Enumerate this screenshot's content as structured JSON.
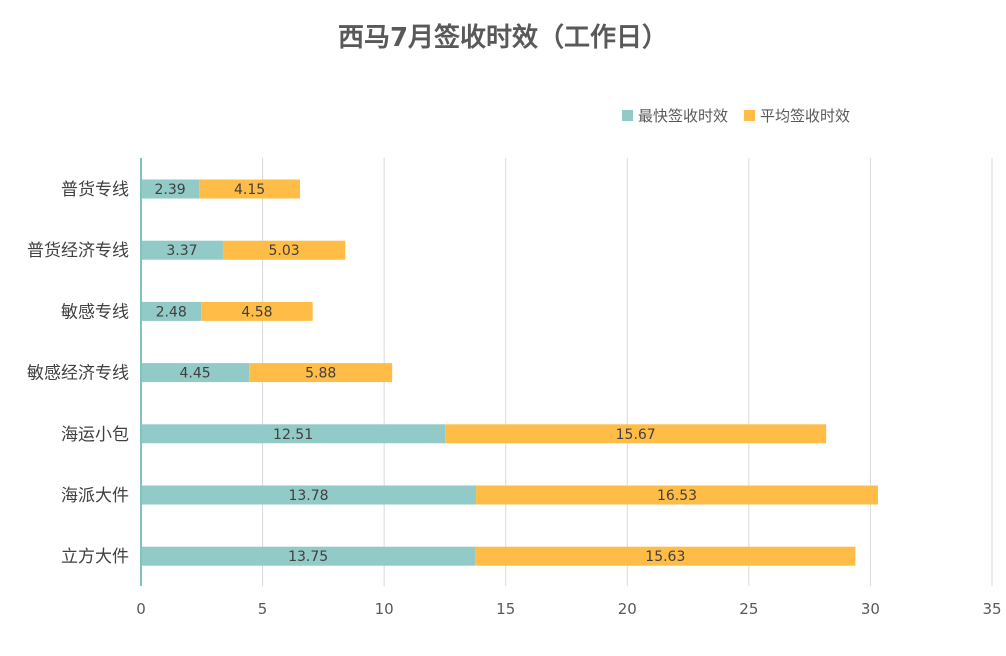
{
  "chart_data": {
    "type": "bar",
    "orientation": "horizontal",
    "stacked": true,
    "title": "西马7月签收时效（工作日）",
    "categories": [
      "普货专线",
      "普货经济专线",
      "敏感专线",
      "敏感经济专线",
      "海运小包",
      "海派大件",
      "立方大件"
    ],
    "series": [
      {
        "name": "最快签收时效",
        "color": "#91CAC6",
        "values": [
          2.39,
          3.37,
          2.48,
          4.45,
          12.51,
          13.78,
          13.75
        ]
      },
      {
        "name": "平均签收时效",
        "color": "#FFBD48",
        "values": [
          4.15,
          5.03,
          4.58,
          5.88,
          15.67,
          16.53,
          15.63
        ]
      }
    ],
    "xlim": [
      0,
      35
    ],
    "ticks": [
      "0",
      "5",
      "10",
      "15",
      "20",
      "25",
      "30",
      "35"
    ],
    "grid": true,
    "legend_position": "top-right",
    "axis_color": "#7FC2BE",
    "grid_color": "#D9D9D9"
  }
}
